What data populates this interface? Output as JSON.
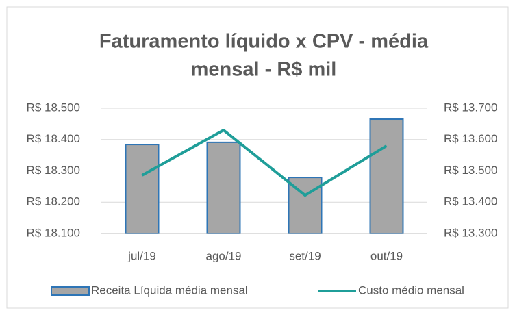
{
  "chart_data": {
    "type": "bar_line",
    "title": [
      "Faturamento líquido x CPV  - média",
      "mensal - R$ mil"
    ],
    "categories": [
      "jul/19",
      "ago/19",
      "set/19",
      "out/19"
    ],
    "series": [
      {
        "name": "Receita Líquida média mensal",
        "type": "bar",
        "color": "#a6a6a6",
        "edge_color": "#2e75b6",
        "values": [
          18384,
          18391,
          18279,
          18465
        ]
      },
      {
        "name": "Custo médio mensal",
        "type": "line",
        "axis": "y2",
        "color": "#1f9e99",
        "values": [
          13486,
          13630,
          13422,
          13580
        ]
      }
    ],
    "ylim": [
      18100,
      18500
    ],
    "yticks": [
      {
        "value": 18100,
        "label": "R$ 18.100"
      },
      {
        "value": 18200,
        "label": "R$ 18.200"
      },
      {
        "value": 18300,
        "label": "R$ 18.300"
      },
      {
        "value": 18400,
        "label": "R$ 18.400"
      },
      {
        "value": 18500,
        "label": "R$ 18.500"
      }
    ],
    "y2lim": [
      13300,
      13700
    ],
    "y2ticks": [
      {
        "value": 13300,
        "label": "R$ 13.300"
      },
      {
        "value": 13400,
        "label": "R$ 13.400"
      },
      {
        "value": 13500,
        "label": "R$ 13.500"
      },
      {
        "value": 13600,
        "label": "R$ 13.600"
      },
      {
        "value": 13700,
        "label": "R$ 13.700"
      }
    ],
    "grid": true,
    "legend": "bottom"
  }
}
